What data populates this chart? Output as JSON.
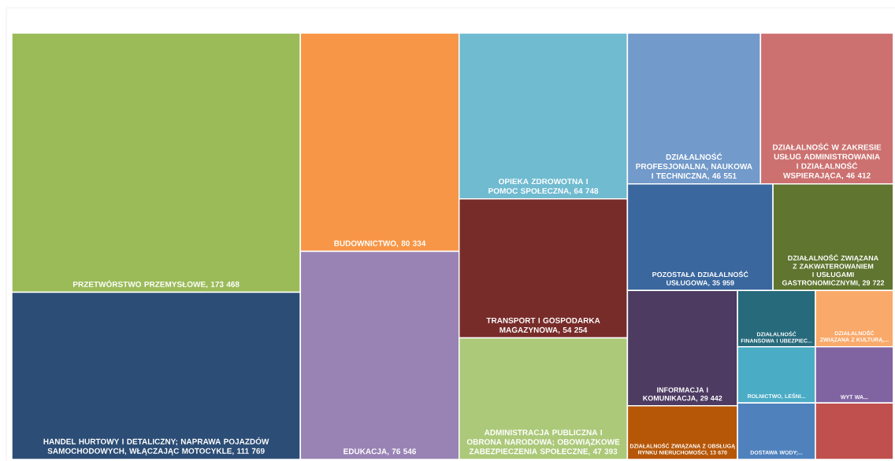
{
  "chart_data": {
    "type": "other",
    "categories": [
      "PRZETWÓRSTWO PRZEMYSŁOWE",
      "HANDEL HURTOWY I DETALICZNY; NAPRAWA POJAZDÓW SAMOCHODOWYCH, WŁĄCZAJĄC MOTOCYKLE",
      "BUDOWNICTWO",
      "EDUKACJA",
      "OPIEKA ZDROWOTNA I POMOC SPOŁECZNA",
      "TRANSPORT I GOSPODARKA MAGAZYNOWA",
      "ADMINISTRACJA PUBLICZNA I OBRONA NARODOWA; OBOWIĄZKOWE ZABEZPIECZENIA SPOŁECZNE",
      "DZIAŁALNOŚĆ PROFESJONALNA, NAUKOWA I TECHNICZNA",
      "DZIAŁALNOŚĆ W ZAKRESIE USŁUG ADMINISTROWANIA I DZIAŁALNOŚĆ WSPIERAJĄCA",
      "POZOSTAŁA DZIAŁALNOŚĆ USŁUGOWA",
      "DZIAŁALNOŚĆ ZWIĄZANA Z ZAKWATEROWANIEM I USŁUGAMI GASTRONOMICZNYMI",
      "INFORMACJA I KOMUNIKACJA",
      "DZIAŁALNOŚĆ ZWIĄZANA Z OBSŁUGĄ RYNKU NIERUCHOMOŚCI",
      "DZIAŁALNOŚĆ FINANSOWA I UBEZPIEC...",
      "DZIAŁALNOŚĆ ZWIĄZANA Z KULTURĄ,...",
      "ROLNICTWO, LEŚNI...",
      "DOSTAWA WODY;...",
      "WYT WA...",
      null
    ],
    "values": [
      173468,
      111769,
      80334,
      76546,
      64748,
      54254,
      47393,
      46551,
      46412,
      35959,
      29722,
      29442,
      13670,
      null,
      null,
      null,
      null,
      null,
      null
    ],
    "value_labels": [
      ", 173 468",
      ", 111 769",
      ", 80 334",
      ", 76 546",
      ", 64 748",
      ", 54 254",
      ", 47 393",
      ", 46 551",
      ", 46 412",
      ", 35 959",
      ", 29 722",
      ", 29 442",
      ", 13 670",
      null,
      null,
      null,
      null,
      null,
      null
    ],
    "colors": [
      "#9bbb59",
      "#2c4d75",
      "#f79646",
      "#9983b5",
      "#70bbd0",
      "#772c2a",
      "#acc97a",
      "#729aca",
      "#cc7170",
      "#3a679e",
      "#5f7530",
      "#4d3b62",
      "#b65708",
      "#276a7c",
      "#f9a96a",
      "#4bacc6",
      "#4f81bd",
      "#8064a2",
      "#c0504d"
    ]
  }
}
